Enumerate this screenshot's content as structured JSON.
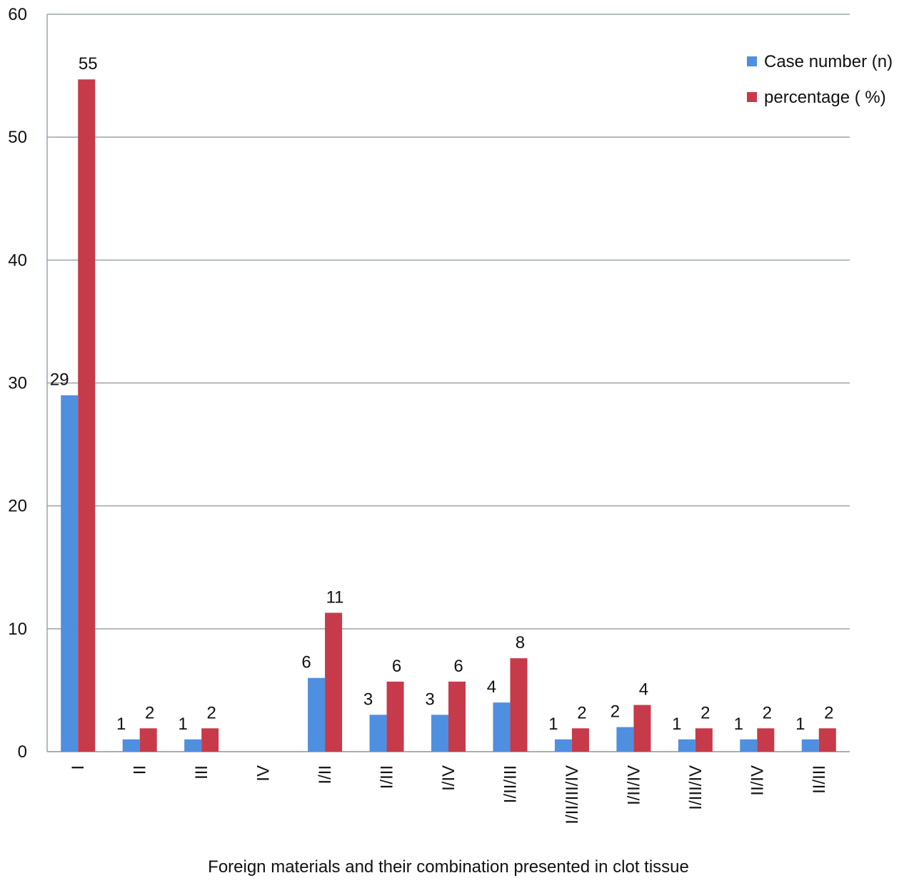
{
  "chart_data": {
    "type": "bar",
    "title": "",
    "xlabel": "Foreign materials and their combination presented in clot tissue",
    "ylabel": "",
    "ylim": [
      0,
      60
    ],
    "yticks": [
      0,
      10,
      20,
      30,
      40,
      50,
      60
    ],
    "grid": true,
    "legend_position": "top-right",
    "categories": [
      "I",
      "II",
      "III",
      "IV",
      "I/II",
      "I/III",
      "I/IV",
      "I/II/III",
      "I/II/III/IV",
      "I/II/IV",
      "I/III/IV",
      "II/IV",
      "II/III"
    ],
    "series": [
      {
        "name": "Case number (n)",
        "color": "#4f8fe0",
        "values": [
          29,
          1,
          1,
          0,
          6,
          3,
          3,
          4,
          1,
          2,
          1,
          1,
          1
        ],
        "labels": [
          "29",
          "1",
          "1",
          "",
          "6",
          "3",
          "3",
          "4",
          "1",
          "2",
          "1",
          "1",
          "1"
        ]
      },
      {
        "name": "percentage ( %)",
        "color": "#c73a4a",
        "values": [
          54.7,
          1.9,
          1.9,
          0,
          11.3,
          5.7,
          5.7,
          7.6,
          1.9,
          3.8,
          1.9,
          1.9,
          1.9
        ],
        "labels": [
          "55",
          "2",
          "2",
          "",
          "11",
          "6",
          "6",
          "8",
          "2",
          "4",
          "2",
          "2",
          "2"
        ]
      }
    ]
  }
}
